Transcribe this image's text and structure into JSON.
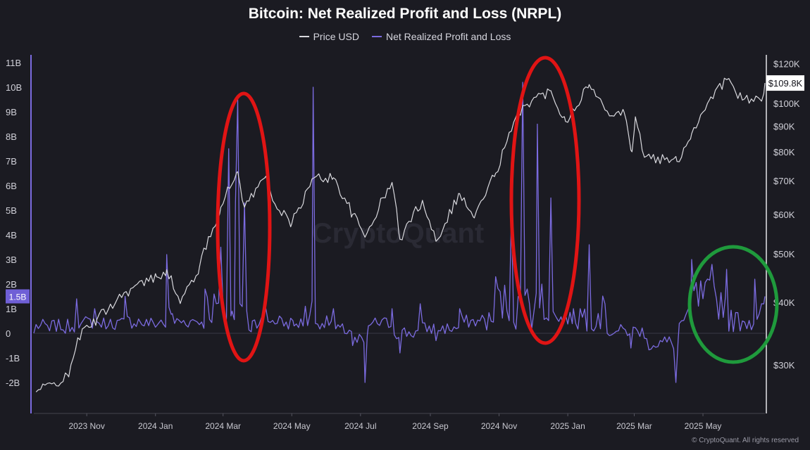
{
  "colors": {
    "background": "#1b1b22",
    "price": "#d9d9de",
    "nrpl": "#7b6be0",
    "red_highlight": "#e01414",
    "green_highlight": "#1f9a3c",
    "zero_line": "#3a3a46"
  },
  "watermark": "CryptoQuant",
  "copyright": "© CryptoQuant. All rights reserved",
  "chart_data": {
    "type": "line",
    "title": "Bitcoin: Net Realized Profit and Loss (NRPL)",
    "legend": [
      "Price USD",
      "Net Realized Profit and Loss"
    ],
    "legend_position": "top-center",
    "grid": false,
    "x_range": [
      "2023-09-15",
      "2025-06-25"
    ],
    "x_ticks": [
      "2023 Nov",
      "2024 Jan",
      "2024 Mar",
      "2024 May",
      "2024 Jul",
      "2024 Sep",
      "2024 Nov",
      "2025 Jan",
      "2025 Mar",
      "2025 May"
    ],
    "y_left": {
      "ticks": [
        "11B",
        "10B",
        "9B",
        "8B",
        "7B",
        "6B",
        "5B",
        "4B",
        "3B",
        "2B",
        "1B",
        "0",
        "-1B",
        "-2B"
      ],
      "range": [
        -2.6,
        11.2
      ],
      "current_value_label": "1.5B",
      "current_value": 1.5
    },
    "y_right": {
      "scale": "log",
      "ticks": [
        "$120K",
        "$100K",
        "$90K",
        "$80K",
        "$70K",
        "$60K",
        "$50K",
        "$40K",
        "$30K"
      ],
      "range": [
        24000,
        125000
      ],
      "current_value_label": "$109.8K",
      "current_value": 109800
    },
    "series": [
      {
        "name": "Price USD",
        "axis": "right",
        "points": [
          [
            "2023-09-17",
            26500
          ],
          [
            "2023-10-01",
            27500
          ],
          [
            "2023-10-16",
            28400
          ],
          [
            "2023-10-24",
            34000
          ],
          [
            "2023-11-10",
            37000
          ],
          [
            "2023-12-04",
            41800
          ],
          [
            "2024-01-02",
            45000
          ],
          [
            "2024-01-11",
            46500
          ],
          [
            "2024-01-23",
            39800
          ],
          [
            "2024-02-09",
            47000
          ],
          [
            "2024-02-28",
            62000
          ],
          [
            "2024-03-14",
            73000
          ],
          [
            "2024-03-20",
            62000
          ],
          [
            "2024-04-08",
            71500
          ],
          [
            "2024-04-18",
            61500
          ],
          [
            "2024-05-01",
            57500
          ],
          [
            "2024-05-21",
            71000
          ],
          [
            "2024-06-07",
            71000
          ],
          [
            "2024-06-24",
            60000
          ],
          [
            "2024-07-05",
            54000
          ],
          [
            "2024-07-29",
            69500
          ],
          [
            "2024-08-05",
            53500
          ],
          [
            "2024-08-25",
            64000
          ],
          [
            "2024-09-06",
            53000
          ],
          [
            "2024-09-27",
            66000
          ],
          [
            "2024-10-10",
            59000
          ],
          [
            "2024-10-29",
            72500
          ],
          [
            "2024-11-12",
            88000
          ],
          [
            "2024-11-22",
            99000
          ],
          [
            "2024-12-17",
            106000
          ],
          [
            "2024-12-30",
            92000
          ],
          [
            "2025-01-20",
            109000
          ],
          [
            "2025-02-03",
            97000
          ],
          [
            "2025-02-20",
            96000
          ],
          [
            "2025-02-27",
            80000
          ],
          [
            "2025-03-02",
            94000
          ],
          [
            "2025-03-10",
            78000
          ],
          [
            "2025-04-08",
            76500
          ],
          [
            "2025-04-21",
            87000
          ],
          [
            "2025-05-08",
            103000
          ],
          [
            "2025-05-22",
            111500
          ],
          [
            "2025-06-05",
            101500
          ],
          [
            "2025-06-22",
            101000
          ],
          [
            "2025-06-25",
            109800
          ]
        ]
      },
      {
        "name": "Net Realized Profit and Loss",
        "axis": "left",
        "unit": "B",
        "points": [
          [
            "2023-09-15",
            0.0
          ],
          [
            "2023-09-29",
            0.1
          ],
          [
            "2023-10-13",
            0.0
          ],
          [
            "2023-10-23",
            1.4
          ],
          [
            "2023-10-27",
            0.4
          ],
          [
            "2023-11-08",
            1.0
          ],
          [
            "2023-11-20",
            0.3
          ],
          [
            "2023-12-05",
            1.5
          ],
          [
            "2023-12-18",
            0.5
          ],
          [
            "2024-01-02",
            0.3
          ],
          [
            "2024-01-11",
            3.2
          ],
          [
            "2024-01-16",
            0.8
          ],
          [
            "2024-02-01",
            0.5
          ],
          [
            "2024-02-14",
            1.8
          ],
          [
            "2024-02-28",
            3.5
          ],
          [
            "2024-03-04",
            0.6
          ],
          [
            "2024-03-06",
            7.5
          ],
          [
            "2024-03-09",
            0.9
          ],
          [
            "2024-03-12",
            5.3
          ],
          [
            "2024-03-14",
            9.5
          ],
          [
            "2024-03-16",
            1.2
          ],
          [
            "2024-03-20",
            5.3
          ],
          [
            "2024-03-27",
            0.5
          ],
          [
            "2024-04-08",
            1.0
          ],
          [
            "2024-04-22",
            0.6
          ],
          [
            "2024-05-03",
            0.3
          ],
          [
            "2024-05-13",
            1.1
          ],
          [
            "2024-05-20",
            10.0
          ],
          [
            "2024-05-22",
            0.4
          ],
          [
            "2024-06-07",
            1.0
          ],
          [
            "2024-06-24",
            -0.5
          ],
          [
            "2024-07-05",
            -2.0
          ],
          [
            "2024-07-08",
            0.3
          ],
          [
            "2024-07-29",
            1.0
          ],
          [
            "2024-08-05",
            -0.8
          ],
          [
            "2024-08-23",
            1.2
          ],
          [
            "2024-09-06",
            -0.3
          ],
          [
            "2024-09-27",
            1.0
          ],
          [
            "2024-10-15",
            0.5
          ],
          [
            "2024-10-29",
            2.3
          ],
          [
            "2024-11-12",
            5.0
          ],
          [
            "2024-11-18",
            1.5
          ],
          [
            "2024-11-22",
            10.2
          ],
          [
            "2024-11-26",
            1.8
          ],
          [
            "2024-12-05",
            8.5
          ],
          [
            "2024-12-09",
            2.0
          ],
          [
            "2024-12-17",
            5.5
          ],
          [
            "2024-12-20",
            0.8
          ],
          [
            "2025-01-06",
            1.0
          ],
          [
            "2025-01-20",
            3.6
          ],
          [
            "2025-02-03",
            1.2
          ],
          [
            "2025-02-26",
            -0.6
          ],
          [
            "2025-03-10",
            -0.2
          ],
          [
            "2025-04-07",
            -2.0
          ],
          [
            "2025-04-10",
            0.4
          ],
          [
            "2025-04-21",
            3.0
          ],
          [
            "2025-05-09",
            2.8
          ],
          [
            "2025-05-22",
            2.6
          ],
          [
            "2025-06-05",
            0.5
          ],
          [
            "2025-06-16",
            2.2
          ],
          [
            "2025-06-25",
            1.5
          ]
        ]
      }
    ]
  }
}
